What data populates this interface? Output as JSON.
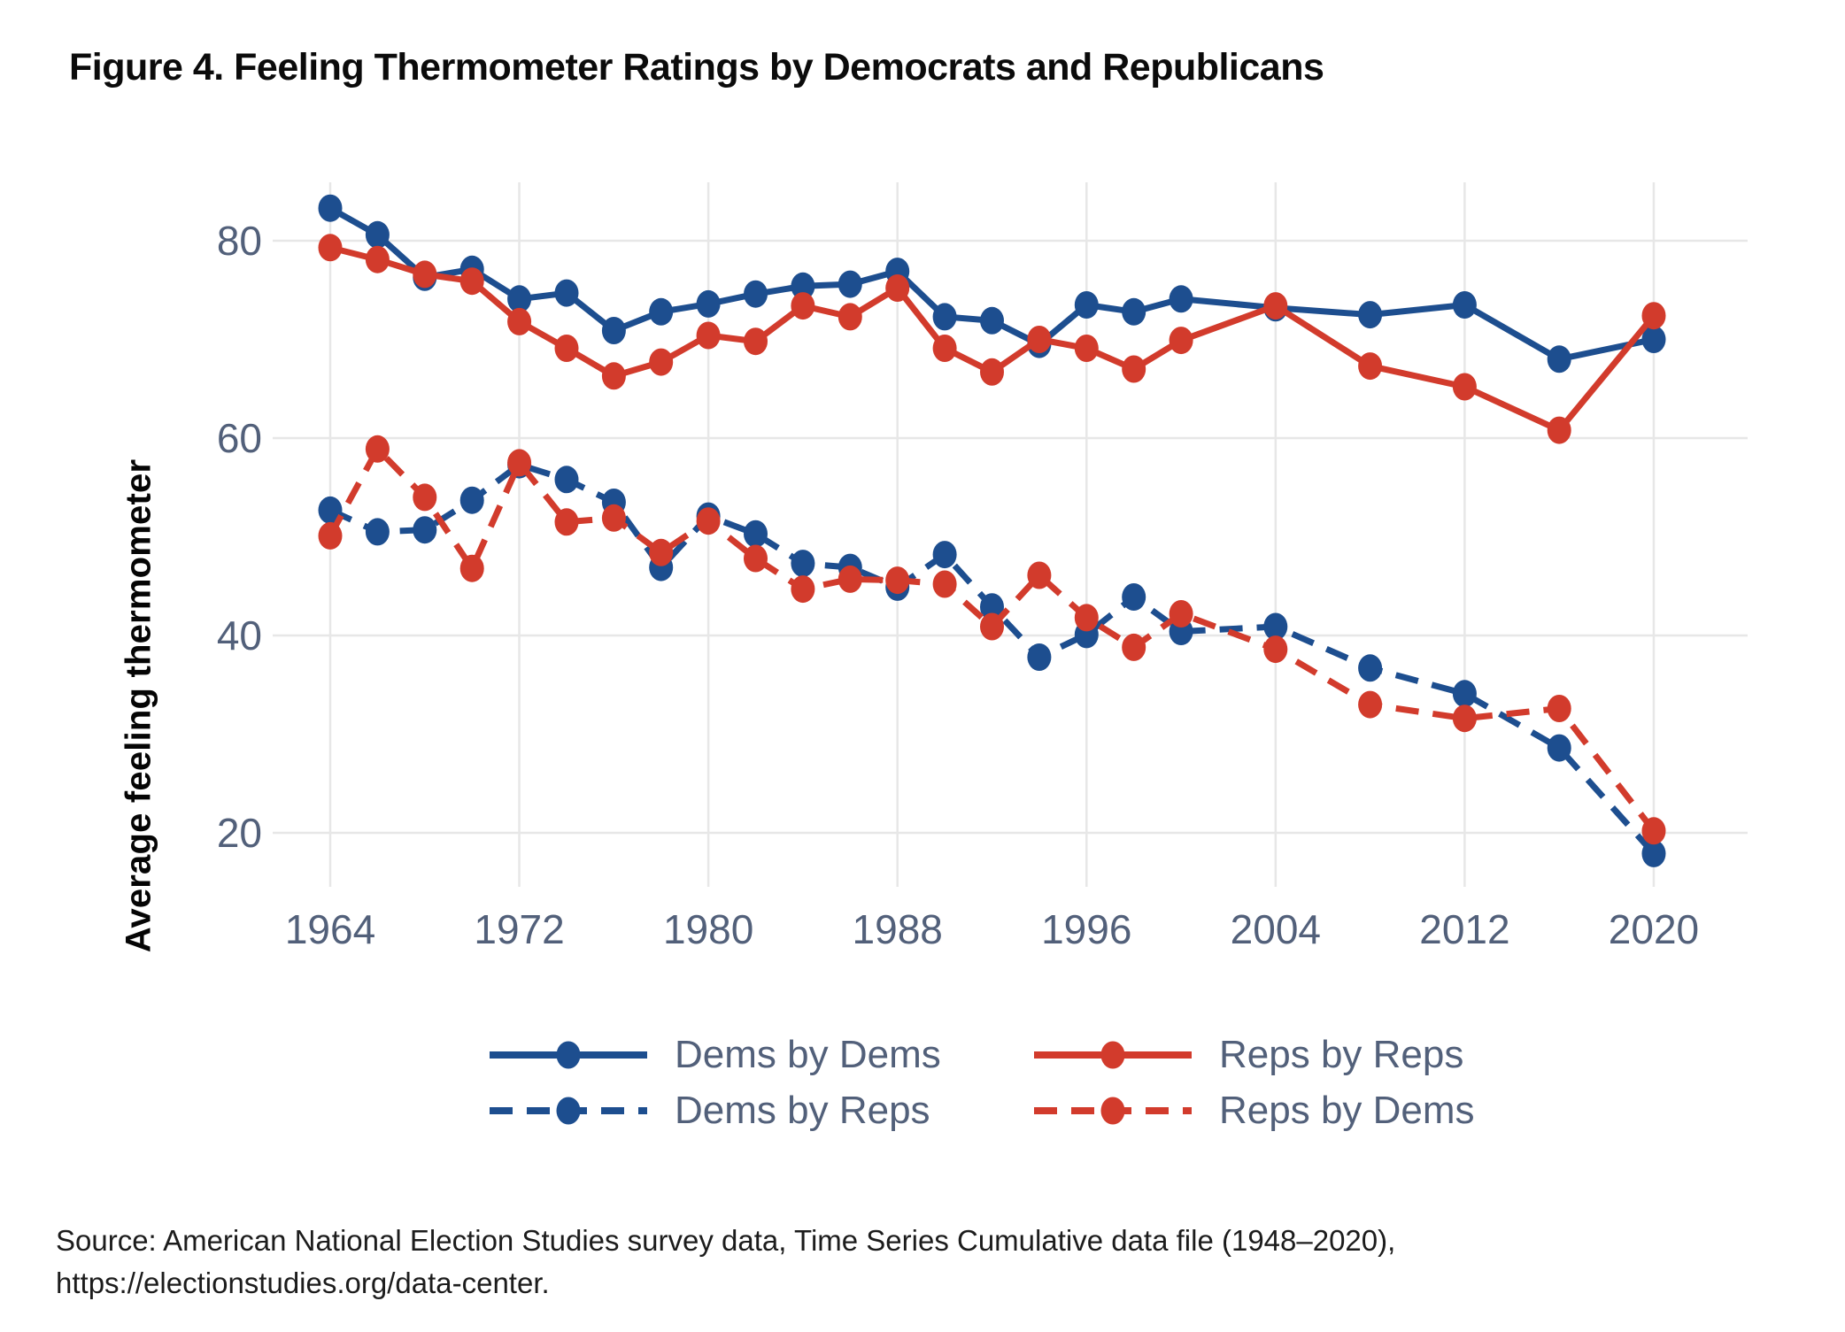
{
  "figure": {
    "title": "Figure 4. Feeling Thermometer Ratings by Democrats and Republicans"
  },
  "colors": {
    "dem_blue": "#1d4e8f",
    "rep_red": "#d23b2c",
    "tick_text": "#52607a",
    "grid": "#e7e7e7",
    "title_text": "#0b0b0b"
  },
  "legend": {
    "items": [
      {
        "label": "Dems by Dems",
        "color": "#1d4e8f",
        "dash": ""
      },
      {
        "label": "Reps by Reps",
        "color": "#d23b2c",
        "dash": ""
      },
      {
        "label": "Dems by Reps",
        "color": "#1d4e8f",
        "dash": "26 16"
      },
      {
        "label": "Reps by Dems",
        "color": "#d23b2c",
        "dash": "26 16"
      }
    ]
  },
  "source": {
    "line1": "Source: American National Election Studies survey data, Time Series Cumulative data file (1948–2020),",
    "line2": "https://electionstudies.org/data-center."
  },
  "chart_data": {
    "type": "line",
    "title": "",
    "xlabel": "",
    "ylabel": "Average feeling thermometer",
    "x": [
      1964,
      1966,
      1968,
      1970,
      1972,
      1974,
      1976,
      1978,
      1980,
      1982,
      1984,
      1986,
      1988,
      1990,
      1992,
      1994,
      1996,
      1998,
      2000,
      2004,
      2008,
      2012,
      2016,
      2020
    ],
    "x_ticks": [
      1964,
      1972,
      1980,
      1988,
      1996,
      2004,
      2012,
      2020
    ],
    "y_ticks": [
      20,
      40,
      60,
      80
    ],
    "xlim": [
      1961.6,
      2024
    ],
    "ylim": [
      14.5,
      86
    ],
    "grid": true,
    "legend_position": "bottom",
    "series": [
      {
        "name": "Dems by Dems",
        "style": "solid",
        "color": "#1d4e8f",
        "values": [
          83.3,
          80.6,
          76.3,
          77.1,
          74.1,
          74.7,
          70.9,
          72.8,
          73.6,
          74.6,
          75.4,
          75.6,
          76.9,
          72.3,
          71.9,
          69.5,
          73.5,
          72.8,
          74.1,
          73.2,
          72.5,
          73.5,
          68.0,
          70.0
        ]
      },
      {
        "name": "Dems by Reps",
        "style": "dashed",
        "color": "#1d4e8f",
        "values": [
          52.7,
          50.5,
          50.7,
          53.7,
          57.3,
          55.8,
          53.5,
          46.9,
          52.1,
          50.3,
          47.3,
          46.9,
          44.9,
          48.2,
          42.9,
          37.8,
          40.1,
          43.9,
          40.4,
          40.9,
          36.7,
          34.1,
          28.6,
          17.9
        ]
      },
      {
        "name": "Reps by Reps",
        "style": "solid",
        "color": "#d23b2c",
        "values": [
          79.3,
          78.1,
          76.6,
          75.9,
          71.8,
          69.1,
          66.3,
          67.7,
          70.4,
          69.8,
          73.4,
          72.3,
          75.2,
          69.1,
          66.7,
          70.0,
          69.1,
          67.0,
          69.9,
          73.4,
          67.3,
          65.2,
          60.8,
          72.4
        ]
      },
      {
        "name": "Reps by Dems",
        "style": "dashed",
        "color": "#d23b2c",
        "values": [
          50.1,
          58.9,
          54.0,
          46.8,
          57.5,
          51.5,
          51.9,
          48.4,
          51.6,
          47.8,
          44.7,
          45.7,
          45.6,
          45.2,
          40.9,
          46.1,
          41.8,
          38.8,
          42.2,
          38.6,
          33.0,
          31.6,
          32.6,
          20.2
        ]
      }
    ]
  }
}
